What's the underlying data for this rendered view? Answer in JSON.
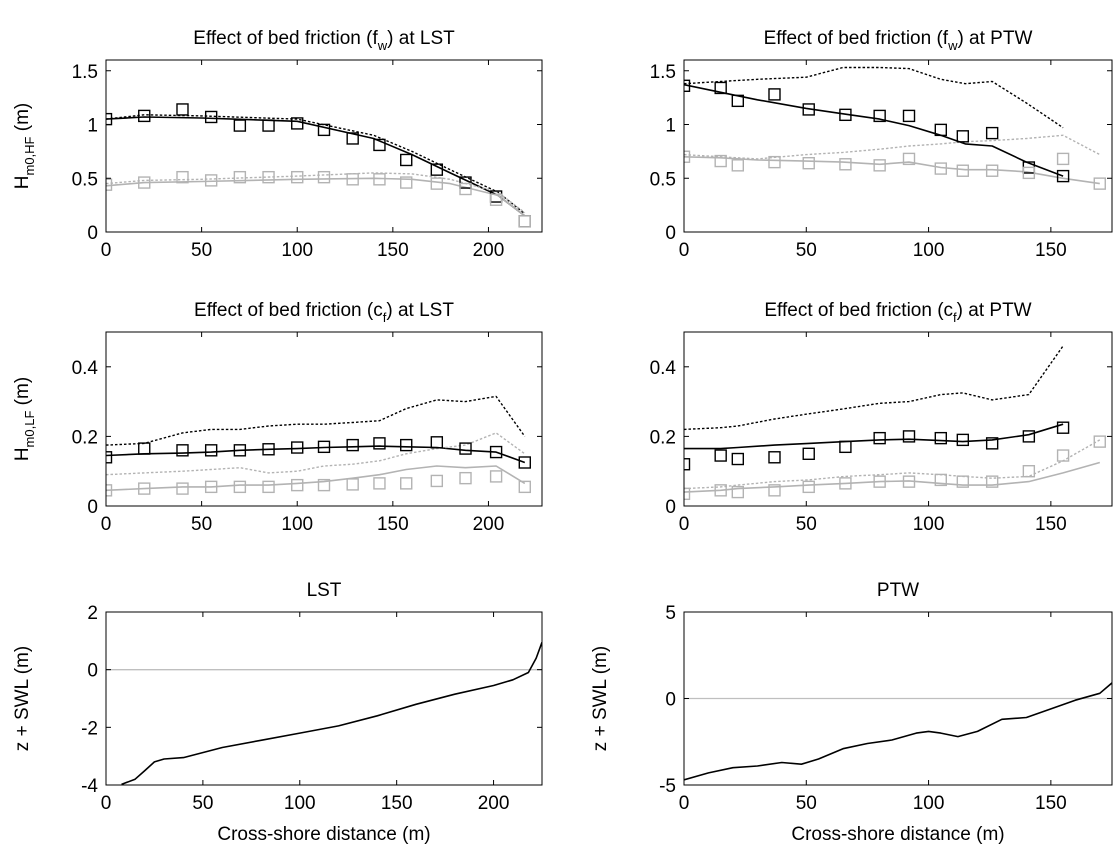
{
  "figure": {
    "common_xlabel": "Cross-shore distance (m)"
  },
  "colors": {
    "dark": "#000000",
    "light": "#b3b3b3",
    "zero_line": "#bfbfbf"
  },
  "chart_data": [
    {
      "id": "lst_hf",
      "type": "line",
      "title": {
        "prefix": "Effect of bed friction (f",
        "sub": "w",
        "suffix": ") at LST"
      },
      "ylabel": {
        "main": "H",
        "sub": "m0,HF",
        "suffix": " (m)"
      },
      "xlabel": "",
      "xlim": [
        0,
        228
      ],
      "ylim": [
        0,
        1.6
      ],
      "xticks": [
        0,
        50,
        100,
        150,
        200
      ],
      "yticks": [
        0,
        0.5,
        1,
        1.5
      ],
      "series": [
        {
          "style": "dark-dotted",
          "x": [
            0,
            20,
            50,
            100,
            140,
            160,
            180,
            205,
            219
          ],
          "y": [
            1.05,
            1.09,
            1.08,
            1.05,
            0.9,
            0.75,
            0.58,
            0.37,
            0.17
          ]
        },
        {
          "style": "dark-solid",
          "x": [
            0,
            20,
            50,
            100,
            140,
            160,
            180,
            205,
            219
          ],
          "y": [
            1.05,
            1.07,
            1.06,
            1.03,
            0.87,
            0.72,
            0.55,
            0.34,
            0.15
          ]
        },
        {
          "style": "light-dotted",
          "x": [
            0,
            20,
            50,
            100,
            140,
            160,
            180,
            205,
            219
          ],
          "y": [
            0.45,
            0.48,
            0.49,
            0.52,
            0.55,
            0.54,
            0.49,
            0.37,
            0.18
          ]
        },
        {
          "style": "light-solid",
          "x": [
            0,
            20,
            50,
            100,
            140,
            160,
            180,
            205,
            219
          ],
          "y": [
            0.43,
            0.46,
            0.47,
            0.49,
            0.5,
            0.49,
            0.45,
            0.34,
            0.15
          ]
        },
        {
          "style": "dark-markers",
          "x": [
            0,
            20,
            40,
            55,
            70,
            85,
            100,
            114,
            129,
            143,
            157,
            173,
            188,
            204,
            219
          ],
          "y": [
            1.05,
            1.08,
            1.14,
            1.07,
            0.99,
            0.99,
            1.01,
            0.95,
            0.87,
            0.81,
            0.67,
            0.58,
            0.46,
            0.33,
            0.1
          ]
        },
        {
          "style": "light-markers",
          "x": [
            0,
            20,
            40,
            55,
            70,
            85,
            100,
            114,
            129,
            143,
            157,
            173,
            188,
            204,
            219
          ],
          "y": [
            0.44,
            0.46,
            0.51,
            0.48,
            0.51,
            0.51,
            0.51,
            0.51,
            0.49,
            0.49,
            0.46,
            0.45,
            0.4,
            0.3,
            0.1
          ]
        }
      ]
    },
    {
      "id": "ptw_hf",
      "type": "line",
      "title": {
        "prefix": "Effect of bed friction (f",
        "sub": "w",
        "suffix": ") at PTW"
      },
      "ylabel": null,
      "xlabel": "",
      "xlim": [
        0,
        175
      ],
      "ylim": [
        0,
        1.6
      ],
      "xticks": [
        0,
        50,
        100,
        150
      ],
      "yticks": [
        0,
        0.5,
        1,
        1.5
      ],
      "series": [
        {
          "style": "dark-dotted",
          "x": [
            0,
            15,
            30,
            50,
            65,
            80,
            92,
            105,
            115,
            126,
            140,
            155
          ],
          "y": [
            1.38,
            1.4,
            1.42,
            1.44,
            1.53,
            1.53,
            1.52,
            1.42,
            1.38,
            1.4,
            1.2,
            0.97
          ]
        },
        {
          "style": "dark-solid",
          "x": [
            0,
            15,
            30,
            50,
            65,
            80,
            92,
            105,
            115,
            126,
            140,
            155
          ],
          "y": [
            1.37,
            1.3,
            1.23,
            1.15,
            1.1,
            1.05,
            0.99,
            0.9,
            0.82,
            0.8,
            0.65,
            0.52
          ]
        },
        {
          "style": "light-dotted",
          "x": [
            0,
            15,
            30,
            50,
            65,
            80,
            92,
            105,
            115,
            126,
            140,
            155,
            170
          ],
          "y": [
            0.72,
            0.7,
            0.68,
            0.72,
            0.74,
            0.77,
            0.8,
            0.82,
            0.84,
            0.85,
            0.87,
            0.9,
            0.72
          ]
        },
        {
          "style": "light-solid",
          "x": [
            0,
            15,
            30,
            50,
            65,
            80,
            92,
            105,
            115,
            126,
            140,
            155,
            170
          ],
          "y": [
            0.7,
            0.69,
            0.67,
            0.66,
            0.65,
            0.63,
            0.65,
            0.6,
            0.58,
            0.58,
            0.56,
            0.5,
            0.45
          ]
        },
        {
          "style": "dark-markers",
          "x": [
            0,
            15,
            22,
            37,
            51,
            66,
            80,
            92,
            105,
            114,
            126,
            141,
            155
          ],
          "y": [
            1.36,
            1.34,
            1.22,
            1.28,
            1.14,
            1.09,
            1.08,
            1.08,
            0.95,
            0.89,
            0.92,
            0.6,
            0.52
          ]
        },
        {
          "style": "light-markers",
          "x": [
            0,
            15,
            22,
            37,
            51,
            66,
            80,
            92,
            105,
            114,
            126,
            141,
            155,
            170
          ],
          "y": [
            0.7,
            0.66,
            0.62,
            0.65,
            0.64,
            0.63,
            0.62,
            0.68,
            0.59,
            0.57,
            0.57,
            0.55,
            0.68,
            0.45
          ]
        }
      ]
    },
    {
      "id": "lst_lf",
      "type": "line",
      "title": {
        "prefix": "Effect of bed friction (c",
        "sub": "f",
        "suffix": ") at LST"
      },
      "ylabel": {
        "main": "H",
        "sub": "m0,LF",
        "suffix": " (m)"
      },
      "xlabel": "",
      "xlim": [
        0,
        228
      ],
      "ylim": [
        0,
        0.5
      ],
      "xticks": [
        0,
        50,
        100,
        150,
        200
      ],
      "yticks": [
        0,
        0.2,
        0.4
      ],
      "series": [
        {
          "style": "dark-dotted",
          "x": [
            0,
            20,
            40,
            55,
            70,
            85,
            100,
            114,
            129,
            143,
            157,
            173,
            188,
            204,
            219
          ],
          "y": [
            0.175,
            0.18,
            0.21,
            0.22,
            0.22,
            0.23,
            0.235,
            0.235,
            0.24,
            0.245,
            0.28,
            0.305,
            0.3,
            0.315,
            0.2
          ]
        },
        {
          "style": "dark-solid",
          "x": [
            0,
            20,
            40,
            55,
            70,
            85,
            100,
            114,
            129,
            143,
            157,
            173,
            188,
            204,
            219
          ],
          "y": [
            0.145,
            0.15,
            0.152,
            0.155,
            0.16,
            0.163,
            0.165,
            0.168,
            0.17,
            0.172,
            0.17,
            0.168,
            0.16,
            0.155,
            0.125
          ]
        },
        {
          "style": "light-dotted",
          "x": [
            0,
            20,
            40,
            55,
            70,
            85,
            100,
            114,
            129,
            143,
            157,
            173,
            188,
            204,
            219
          ],
          "y": [
            0.09,
            0.095,
            0.1,
            0.105,
            0.11,
            0.095,
            0.1,
            0.115,
            0.12,
            0.13,
            0.15,
            0.165,
            0.175,
            0.21,
            0.15
          ]
        },
        {
          "style": "light-solid",
          "x": [
            0,
            20,
            40,
            55,
            70,
            85,
            100,
            114,
            129,
            143,
            157,
            173,
            188,
            204,
            219
          ],
          "y": [
            0.045,
            0.05,
            0.055,
            0.055,
            0.06,
            0.06,
            0.065,
            0.07,
            0.08,
            0.09,
            0.105,
            0.115,
            0.11,
            0.115,
            0.065
          ]
        },
        {
          "style": "dark-markers",
          "x": [
            0,
            20,
            40,
            55,
            70,
            85,
            100,
            114,
            129,
            143,
            157,
            173,
            188,
            204,
            219
          ],
          "y": [
            0.14,
            0.165,
            0.16,
            0.16,
            0.16,
            0.163,
            0.168,
            0.17,
            0.175,
            0.18,
            0.175,
            0.183,
            0.165,
            0.155,
            0.125
          ]
        },
        {
          "style": "light-markers",
          "x": [
            0,
            20,
            40,
            55,
            70,
            85,
            100,
            114,
            129,
            143,
            157,
            173,
            188,
            204,
            219
          ],
          "y": [
            0.045,
            0.05,
            0.05,
            0.055,
            0.055,
            0.055,
            0.06,
            0.06,
            0.062,
            0.065,
            0.065,
            0.072,
            0.08,
            0.085,
            0.055
          ]
        }
      ]
    },
    {
      "id": "ptw_lf",
      "type": "line",
      "title": {
        "prefix": "Effect of bed friction (c",
        "sub": "f",
        "suffix": ") at PTW"
      },
      "ylabel": null,
      "xlabel": "",
      "xlim": [
        0,
        175
      ],
      "ylim": [
        0,
        0.5
      ],
      "xticks": [
        0,
        50,
        100,
        150
      ],
      "yticks": [
        0,
        0.2,
        0.4
      ],
      "series": [
        {
          "style": "dark-dotted",
          "x": [
            0,
            15,
            22,
            37,
            51,
            66,
            80,
            92,
            105,
            114,
            126,
            141,
            155
          ],
          "y": [
            0.22,
            0.225,
            0.23,
            0.25,
            0.265,
            0.28,
            0.295,
            0.3,
            0.32,
            0.325,
            0.305,
            0.32,
            0.46
          ]
        },
        {
          "style": "dark-solid",
          "x": [
            0,
            15,
            22,
            37,
            51,
            66,
            80,
            92,
            105,
            114,
            126,
            141,
            155
          ],
          "y": [
            0.165,
            0.165,
            0.168,
            0.175,
            0.18,
            0.185,
            0.19,
            0.192,
            0.188,
            0.185,
            0.19,
            0.205,
            0.235
          ]
        },
        {
          "style": "light-dotted",
          "x": [
            0,
            15,
            22,
            37,
            51,
            66,
            80,
            92,
            105,
            114,
            126,
            141,
            155,
            170
          ],
          "y": [
            0.05,
            0.055,
            0.06,
            0.07,
            0.075,
            0.085,
            0.09,
            0.095,
            0.09,
            0.085,
            0.08,
            0.085,
            0.13,
            0.19
          ]
        },
        {
          "style": "light-solid",
          "x": [
            0,
            15,
            22,
            37,
            51,
            66,
            80,
            92,
            105,
            114,
            126,
            141,
            155,
            170
          ],
          "y": [
            0.04,
            0.045,
            0.05,
            0.055,
            0.06,
            0.065,
            0.07,
            0.072,
            0.065,
            0.06,
            0.06,
            0.07,
            0.095,
            0.125
          ]
        },
        {
          "style": "dark-markers",
          "x": [
            0,
            15,
            22,
            37,
            51,
            66,
            80,
            92,
            105,
            114,
            126,
            141,
            155
          ],
          "y": [
            0.12,
            0.145,
            0.135,
            0.14,
            0.15,
            0.17,
            0.195,
            0.2,
            0.195,
            0.19,
            0.18,
            0.2,
            0.225
          ]
        },
        {
          "style": "light-markers",
          "x": [
            0,
            15,
            22,
            37,
            51,
            66,
            80,
            92,
            105,
            114,
            126,
            141,
            155,
            170
          ],
          "y": [
            0.035,
            0.045,
            0.04,
            0.045,
            0.055,
            0.065,
            0.07,
            0.07,
            0.075,
            0.07,
            0.07,
            0.1,
            0.145,
            0.185
          ]
        }
      ]
    },
    {
      "id": "lst_profile",
      "type": "line",
      "title": {
        "prefix": "LST",
        "sub": "",
        "suffix": ""
      },
      "ylabel": {
        "main": "z + SWL (m)",
        "sub": "",
        "suffix": ""
      },
      "xlabel": "Cross-shore distance (m)",
      "xlim": [
        0,
        225
      ],
      "ylim": [
        -4,
        2
      ],
      "xticks": [
        0,
        50,
        100,
        150,
        200
      ],
      "yticks": [
        -4,
        -2,
        0,
        2
      ],
      "hline": 0,
      "series": [
        {
          "style": "dark-solid",
          "x": [
            8,
            15,
            20,
            25,
            30,
            40,
            60,
            80,
            100,
            120,
            140,
            160,
            180,
            200,
            210,
            218,
            222,
            225
          ],
          "y": [
            -3.98,
            -3.8,
            -3.5,
            -3.2,
            -3.1,
            -3.05,
            -2.7,
            -2.45,
            -2.2,
            -1.95,
            -1.6,
            -1.2,
            -0.85,
            -0.55,
            -0.35,
            -0.1,
            0.4,
            0.95
          ]
        }
      ]
    },
    {
      "id": "ptw_profile",
      "type": "line",
      "title": {
        "prefix": "PTW",
        "sub": "",
        "suffix": ""
      },
      "ylabel": {
        "main": "z + SWL (m)",
        "sub": "",
        "suffix": ""
      },
      "xlabel": "Cross-shore distance (m)",
      "xlim": [
        0,
        175
      ],
      "ylim": [
        -5,
        5
      ],
      "xticks": [
        0,
        50,
        100,
        150
      ],
      "yticks": [
        -5,
        0,
        5
      ],
      "hline": 0,
      "series": [
        {
          "style": "dark-solid",
          "x": [
            0,
            10,
            20,
            30,
            40,
            48,
            55,
            65,
            75,
            85,
            95,
            100,
            105,
            112,
            120,
            130,
            140,
            150,
            160,
            170,
            175
          ],
          "y": [
            -4.7,
            -4.3,
            -4.0,
            -3.9,
            -3.7,
            -3.8,
            -3.5,
            -2.9,
            -2.6,
            -2.4,
            -2.0,
            -1.9,
            -2.0,
            -2.2,
            -1.9,
            -1.2,
            -1.1,
            -0.6,
            -0.1,
            0.3,
            0.9
          ]
        }
      ]
    }
  ]
}
